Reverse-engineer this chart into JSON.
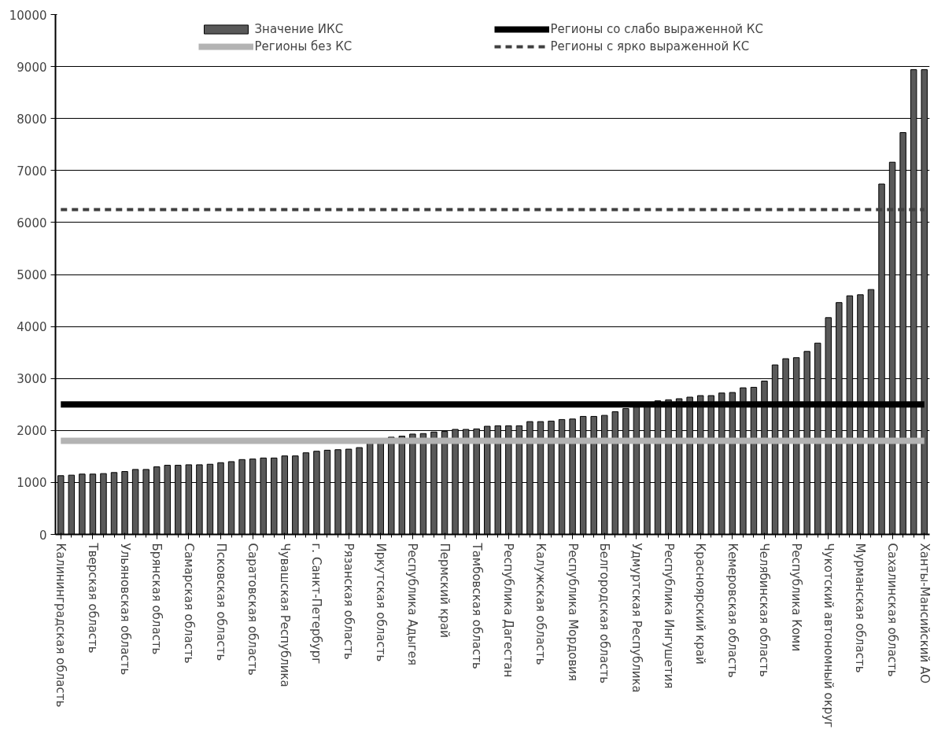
{
  "chart_data": {
    "type": "bar",
    "categories": [
      "Калининградская область",
      null,
      null,
      "Тверская область",
      null,
      null,
      "Ульяновская область",
      null,
      null,
      "Брянская область",
      null,
      null,
      "Самарская область",
      null,
      null,
      "Псковская область",
      null,
      null,
      "Саратовская область",
      null,
      null,
      "Чувашская Республика",
      null,
      null,
      "г. Санкт-Петербург",
      null,
      null,
      "Рязанская область",
      null,
      null,
      "Иркутская область",
      null,
      null,
      "Республика Адыгея",
      null,
      null,
      "Пермский край",
      null,
      null,
      "Тамбовская область",
      null,
      null,
      "Республика Дагестан",
      null,
      null,
      "Калужская область",
      null,
      null,
      "Республика Мордовия",
      null,
      null,
      "Белгородская область",
      null,
      null,
      "Удмуртская Республика",
      null,
      null,
      "Республика Ингушетия",
      null,
      null,
      "Красноярский край",
      null,
      null,
      "Кемеровская область",
      null,
      null,
      "Челябинская область",
      null,
      null,
      "Республика Коми",
      null,
      null,
      "Чукотский автономный округ",
      null,
      null,
      "Мурманская область",
      null,
      null,
      "Сахалинская область",
      null,
      null,
      "Ханты-Мансийский АО"
    ],
    "series": [
      {
        "name": "Значение ИКС",
        "color": "#595959",
        "values": [
          1130,
          1140,
          1160,
          1160,
          1170,
          1190,
          1210,
          1250,
          1250,
          1300,
          1330,
          1330,
          1340,
          1340,
          1350,
          1380,
          1400,
          1440,
          1450,
          1470,
          1470,
          1510,
          1510,
          1570,
          1600,
          1620,
          1630,
          1640,
          1670,
          1760,
          1800,
          1870,
          1890,
          1930,
          1940,
          1970,
          1980,
          2020,
          2020,
          2030,
          2080,
          2090,
          2090,
          2090,
          2170,
          2170,
          2180,
          2210,
          2220,
          2270,
          2270,
          2290,
          2360,
          2420,
          2450,
          2480,
          2570,
          2590,
          2610,
          2640,
          2670,
          2670,
          2720,
          2730,
          2820,
          2830,
          2950,
          3260,
          3380,
          3400,
          3520,
          3680,
          4170,
          4460,
          4590,
          4610,
          4710,
          6740,
          7160,
          7730,
          8940,
          8940
        ]
      },
      {
        "name": "Регионы без КС",
        "type": "line",
        "color": "#b3b3b3",
        "line_style": "solid",
        "values": [
          1800,
          1800,
          1800,
          1800,
          1800,
          1800,
          1800,
          1800,
          1800,
          1800,
          1800,
          1800,
          1800,
          1800,
          1800,
          1800,
          1800,
          1800,
          1800,
          1800,
          1800,
          1800,
          1800,
          1800,
          1800,
          1800,
          1800,
          1800,
          1800,
          1800,
          1800,
          1800,
          1800,
          1800,
          1800,
          1800,
          1800,
          1800,
          1800,
          1800,
          1800,
          1800,
          1800,
          1800,
          1800,
          1800,
          1800,
          1800,
          1800,
          1800,
          1800,
          1800,
          1800,
          1800,
          1800,
          1800,
          1800,
          1800,
          1800,
          1800,
          1800,
          1800,
          1800,
          1800,
          1800,
          1800,
          1800,
          1800,
          1800,
          1800,
          1800,
          1800,
          1800,
          1800,
          1800,
          1800,
          1800,
          1800,
          1800,
          1800,
          1800,
          1800
        ]
      },
      {
        "name": "Регионы со слабо выраженной КС",
        "type": "line",
        "color": "#000000",
        "line_style": "solid",
        "values": [
          2500,
          2500,
          2500,
          2500,
          2500,
          2500,
          2500,
          2500,
          2500,
          2500,
          2500,
          2500,
          2500,
          2500,
          2500,
          2500,
          2500,
          2500,
          2500,
          2500,
          2500,
          2500,
          2500,
          2500,
          2500,
          2500,
          2500,
          2500,
          2500,
          2500,
          2500,
          2500,
          2500,
          2500,
          2500,
          2500,
          2500,
          2500,
          2500,
          2500,
          2500,
          2500,
          2500,
          2500,
          2500,
          2500,
          2500,
          2500,
          2500,
          2500,
          2500,
          2500,
          2500,
          2500,
          2500,
          2500,
          2500,
          2500,
          2500,
          2500,
          2500,
          2500,
          2500,
          2500,
          2500,
          2500,
          2500,
          2500,
          2500,
          2500,
          2500,
          2500,
          2500,
          2500,
          2500,
          2500,
          2500,
          2500,
          2500,
          2500,
          2500,
          2500
        ]
      },
      {
        "name": "Регионы с ярко выраженной КС",
        "type": "line",
        "color": "#404040",
        "line_style": "dashed",
        "values": [
          6250,
          6250,
          6250,
          6250,
          6250,
          6250,
          6250,
          6250,
          6250,
          6250,
          6250,
          6250,
          6250,
          6250,
          6250,
          6250,
          6250,
          6250,
          6250,
          6250,
          6250,
          6250,
          6250,
          6250,
          6250,
          6250,
          6250,
          6250,
          6250,
          6250,
          6250,
          6250,
          6250,
          6250,
          6250,
          6250,
          6250,
          6250,
          6250,
          6250,
          6250,
          6250,
          6250,
          6250,
          6250,
          6250,
          6250,
          6250,
          6250,
          6250,
          6250,
          6250,
          6250,
          6250,
          6250,
          6250,
          6250,
          6250,
          6250,
          6250,
          6250,
          6250,
          6250,
          6250,
          6250,
          6250,
          6250,
          6250,
          6250,
          6250,
          6250,
          6250,
          6250,
          6250,
          6250,
          6250,
          6250,
          6250,
          6250,
          6250,
          6250,
          6250
        ]
      }
    ],
    "ylim": [
      0,
      10000
    ],
    "yticks": [
      0,
      1000,
      2000,
      3000,
      4000,
      5000,
      6000,
      7000,
      8000,
      9000,
      10000
    ],
    "grid": "y",
    "legend": "top"
  }
}
